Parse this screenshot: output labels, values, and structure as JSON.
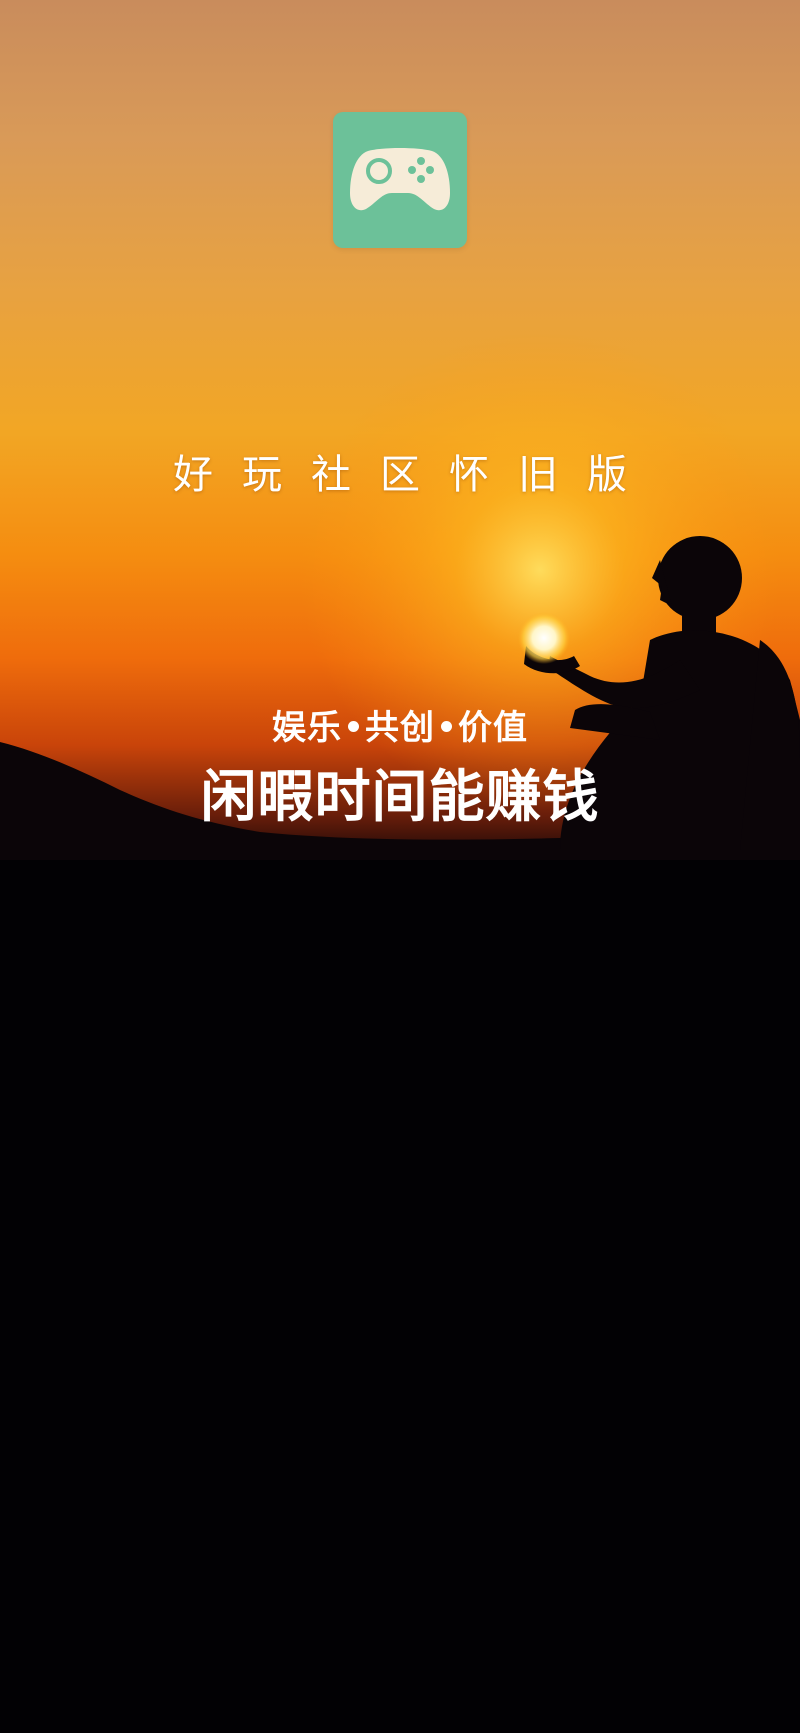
{
  "splash": {
    "app_name": "好玩社区怀旧版",
    "app_icon": "gamepad-icon",
    "slogan_parts": [
      "娱乐",
      "共创",
      "价值"
    ],
    "headline": "闲暇时间能赚钱"
  },
  "colors": {
    "icon_background": "#6cc199",
    "icon_gamepad": "#f6ecd8",
    "icon_buttons": "#6cc199",
    "sky_top": "#d49a5e",
    "sky_mid": "#f0a030",
    "sky_low": "#e86a10",
    "silhouette": "#0b0508",
    "ground": "#020104",
    "text": "#ffffff"
  }
}
